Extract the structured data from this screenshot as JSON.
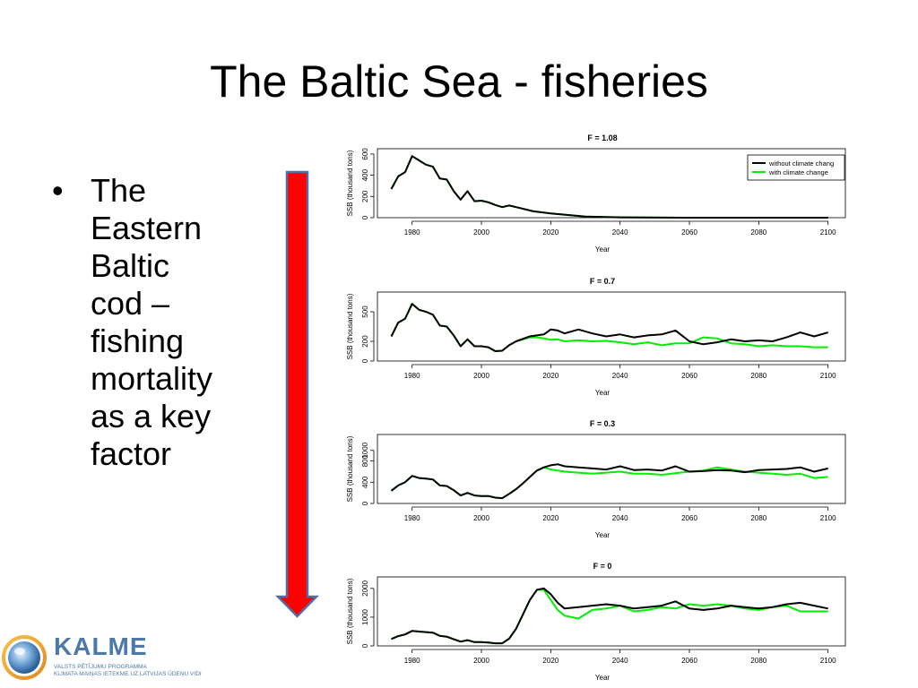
{
  "slide": {
    "title": "The Baltic Sea - fisheries",
    "bullet": "The\nEastern\nBaltic\ncod –\nfishing\nmortality\nas a key\nfactor"
  },
  "logo": {
    "name": "KALME",
    "subtitle_line1": "VALSTS PĒTĪJUMU PROGRAMMA",
    "subtitle_line2": "KLIMATA MAIŅAS IETEKME UZ LATVIJAS ŪDEŅU VIDI"
  },
  "colors": {
    "arrow_fill": "#ff0000",
    "arrow_stroke": "#4f6fa8",
    "without_series": "#000000",
    "with_series": "#00ee00",
    "logo_blue": "#4d79a8"
  },
  "chart_data": [
    {
      "type": "line",
      "title": "F = 1.08",
      "xlabel": "Year",
      "ylabel": "SSB (thousand tons)",
      "xlim": [
        1970,
        2105
      ],
      "ylim": [
        0,
        650
      ],
      "xticks": [
        1980,
        2000,
        2020,
        2040,
        2060,
        2080,
        2100
      ],
      "yticks": [
        0,
        200,
        400,
        600
      ],
      "legend": {
        "entries": [
          "without climate chang",
          "with climate change"
        ],
        "position": "top-right"
      },
      "series": [
        {
          "name": "without climate chang",
          "color": "#000000",
          "x": [
            1974,
            1976,
            1978,
            1980,
            1982,
            1984,
            1986,
            1988,
            1990,
            1992,
            1994,
            1996,
            1998,
            2000,
            2002,
            2004,
            2006,
            2008,
            2010,
            2015,
            2020,
            2025,
            2030,
            2040,
            2060,
            2080,
            2100
          ],
          "y": [
            270,
            390,
            430,
            580,
            540,
            500,
            480,
            370,
            360,
            250,
            170,
            250,
            155,
            160,
            145,
            120,
            100,
            115,
            100,
            60,
            40,
            25,
            10,
            3,
            0,
            0,
            0
          ]
        },
        {
          "name": "with climate change",
          "color": "#00ee00",
          "x": [
            1974,
            1976,
            1978,
            1980,
            1982,
            1984,
            1986,
            1988,
            1990,
            1992,
            1994,
            1996,
            1998,
            2000,
            2002,
            2004,
            2006,
            2008,
            2010,
            2015,
            2020,
            2025,
            2030,
            2040,
            2060,
            2080,
            2100
          ],
          "y": [
            270,
            390,
            430,
            580,
            540,
            500,
            480,
            370,
            360,
            250,
            170,
            250,
            155,
            160,
            145,
            120,
            100,
            115,
            100,
            60,
            40,
            25,
            10,
            3,
            0,
            0,
            0
          ]
        }
      ]
    },
    {
      "type": "line",
      "title": "F = 0.7",
      "xlabel": "Year",
      "ylabel": "SSB (thousand tons)",
      "xlim": [
        1970,
        2105
      ],
      "ylim": [
        0,
        700
      ],
      "xticks": [
        1980,
        2000,
        2020,
        2040,
        2060,
        2080,
        2100
      ],
      "yticks": [
        0,
        200,
        500
      ],
      "series": [
        {
          "name": "without climate change",
          "color": "#000000",
          "x": [
            1974,
            1976,
            1978,
            1980,
            1982,
            1984,
            1986,
            1988,
            1990,
            1992,
            1994,
            1996,
            1998,
            2000,
            2002,
            2004,
            2006,
            2008,
            2010,
            2014,
            2016,
            2018,
            2020,
            2022,
            2024,
            2028,
            2032,
            2036,
            2040,
            2044,
            2048,
            2052,
            2056,
            2060,
            2064,
            2068,
            2072,
            2076,
            2080,
            2084,
            2088,
            2092,
            2096,
            2100
          ],
          "y": [
            250,
            390,
            430,
            580,
            520,
            500,
            470,
            360,
            350,
            260,
            150,
            220,
            150,
            150,
            140,
            100,
            105,
            160,
            200,
            250,
            260,
            270,
            320,
            310,
            280,
            320,
            280,
            250,
            270,
            240,
            260,
            270,
            310,
            200,
            170,
            190,
            220,
            200,
            210,
            200,
            240,
            290,
            250,
            290
          ]
        },
        {
          "name": "with climate change",
          "color": "#00ee00",
          "x": [
            1974,
            1976,
            1978,
            1980,
            1982,
            1984,
            1986,
            1988,
            1990,
            1992,
            1994,
            1996,
            1998,
            2000,
            2002,
            2004,
            2006,
            2008,
            2010,
            2014,
            2016,
            2018,
            2020,
            2022,
            2024,
            2028,
            2032,
            2036,
            2040,
            2044,
            2048,
            2052,
            2056,
            2060,
            2064,
            2068,
            2072,
            2076,
            2080,
            2084,
            2088,
            2092,
            2096,
            2100
          ],
          "y": [
            250,
            390,
            430,
            580,
            520,
            500,
            470,
            360,
            350,
            260,
            150,
            220,
            150,
            150,
            140,
            100,
            105,
            160,
            200,
            240,
            240,
            230,
            215,
            220,
            200,
            210,
            200,
            205,
            190,
            170,
            190,
            160,
            180,
            180,
            240,
            230,
            180,
            170,
            150,
            160,
            150,
            150,
            140,
            140
          ]
        }
      ]
    },
    {
      "type": "line",
      "title": "F = 0.3",
      "xlabel": "Year",
      "ylabel": "SSB (thousand tons)",
      "xlim": [
        1970,
        2105
      ],
      "ylim": [
        0,
        1300
      ],
      "xticks": [
        1980,
        2000,
        2020,
        2040,
        2060,
        2080,
        2100
      ],
      "yticks": [
        0,
        400,
        800,
        1000
      ],
      "series": [
        {
          "name": "without climate change",
          "color": "#000000",
          "x": [
            1974,
            1976,
            1978,
            1980,
            1982,
            1984,
            1986,
            1988,
            1990,
            1992,
            1994,
            1996,
            1998,
            2000,
            2002,
            2004,
            2006,
            2008,
            2010,
            2012,
            2014,
            2016,
            2018,
            2020,
            2022,
            2024,
            2028,
            2032,
            2036,
            2040,
            2044,
            2048,
            2052,
            2056,
            2060,
            2064,
            2068,
            2072,
            2076,
            2080,
            2084,
            2088,
            2092,
            2096,
            2100
          ],
          "y": [
            240,
            340,
            400,
            520,
            480,
            470,
            450,
            340,
            330,
            250,
            150,
            200,
            150,
            140,
            140,
            110,
            100,
            180,
            270,
            380,
            500,
            620,
            680,
            720,
            740,
            700,
            680,
            660,
            640,
            700,
            630,
            640,
            620,
            700,
            600,
            610,
            630,
            620,
            590,
            630,
            640,
            650,
            680,
            600,
            660
          ]
        },
        {
          "name": "with climate change",
          "color": "#00ee00",
          "x": [
            1974,
            1976,
            1978,
            1980,
            1982,
            1984,
            1986,
            1988,
            1990,
            1992,
            1994,
            1996,
            1998,
            2000,
            2002,
            2004,
            2006,
            2008,
            2010,
            2012,
            2014,
            2016,
            2018,
            2020,
            2022,
            2024,
            2028,
            2032,
            2036,
            2040,
            2044,
            2048,
            2052,
            2056,
            2060,
            2064,
            2068,
            2072,
            2076,
            2080,
            2084,
            2088,
            2092,
            2096,
            2100
          ],
          "y": [
            240,
            340,
            400,
            520,
            480,
            470,
            450,
            340,
            330,
            250,
            150,
            200,
            150,
            140,
            140,
            110,
            100,
            180,
            270,
            380,
            500,
            620,
            680,
            640,
            620,
            600,
            580,
            560,
            580,
            600,
            560,
            560,
            540,
            570,
            600,
            620,
            680,
            640,
            600,
            580,
            560,
            540,
            560,
            480,
            500
          ]
        }
      ]
    },
    {
      "type": "line",
      "title": "F = 0",
      "xlabel": "Year",
      "ylabel": "SSB (thousand tons)",
      "xlim": [
        1970,
        2105
      ],
      "ylim": [
        0,
        2400
      ],
      "xticks": [
        1980,
        2000,
        2020,
        2040,
        2060,
        2080,
        2100
      ],
      "yticks": [
        0,
        1000,
        2000
      ],
      "series": [
        {
          "name": "without climate change",
          "color": "#000000",
          "x": [
            1974,
            1976,
            1978,
            1980,
            1982,
            1984,
            1986,
            1988,
            1990,
            1992,
            1994,
            1996,
            1998,
            2000,
            2002,
            2004,
            2006,
            2008,
            2010,
            2012,
            2014,
            2016,
            2018,
            2020,
            2022,
            2024,
            2028,
            2032,
            2036,
            2040,
            2044,
            2048,
            2052,
            2056,
            2060,
            2064,
            2068,
            2072,
            2076,
            2080,
            2084,
            2088,
            2092,
            2096,
            2100
          ],
          "y": [
            240,
            340,
            400,
            520,
            500,
            480,
            460,
            350,
            320,
            230,
            150,
            200,
            130,
            130,
            120,
            90,
            90,
            250,
            600,
            1100,
            1600,
            1950,
            2000,
            1800,
            1500,
            1300,
            1350,
            1400,
            1450,
            1400,
            1300,
            1350,
            1400,
            1550,
            1300,
            1250,
            1300,
            1400,
            1350,
            1300,
            1350,
            1450,
            1500,
            1400,
            1300
          ]
        },
        {
          "name": "with climate change",
          "color": "#00ee00",
          "x": [
            1974,
            1976,
            1978,
            1980,
            1982,
            1984,
            1986,
            1988,
            1990,
            1992,
            1994,
            1996,
            1998,
            2000,
            2002,
            2004,
            2006,
            2008,
            2010,
            2012,
            2014,
            2016,
            2018,
            2020,
            2022,
            2024,
            2028,
            2032,
            2036,
            2040,
            2044,
            2048,
            2052,
            2056,
            2060,
            2064,
            2068,
            2072,
            2076,
            2080,
            2084,
            2088,
            2092,
            2096,
            2100
          ],
          "y": [
            240,
            340,
            400,
            520,
            500,
            480,
            460,
            350,
            320,
            230,
            150,
            200,
            130,
            130,
            120,
            90,
            90,
            250,
            600,
            1100,
            1600,
            1950,
            1950,
            1600,
            1250,
            1050,
            950,
            1250,
            1300,
            1400,
            1200,
            1250,
            1350,
            1300,
            1450,
            1400,
            1450,
            1400,
            1300,
            1250,
            1350,
            1400,
            1200,
            1200,
            1200
          ]
        }
      ]
    }
  ]
}
